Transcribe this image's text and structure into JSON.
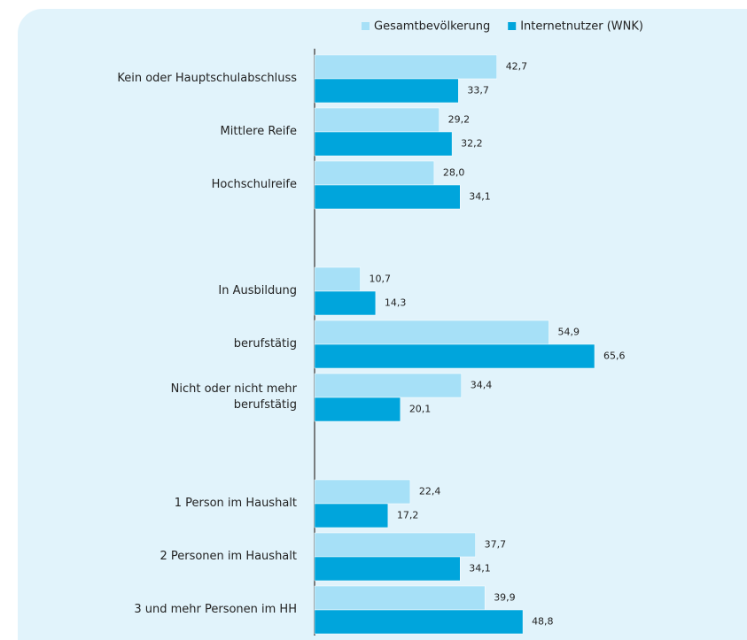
{
  "chart_data": {
    "type": "bar",
    "orientation": "horizontal",
    "categories": [
      "Kein oder Hauptschulabschluss",
      "Mittlere Reife",
      "Hochschulreife",
      null,
      "In Ausbildung",
      "berufstätig",
      "Nicht oder nicht mehr berufstätig",
      null,
      "1 Person im Haushalt",
      "2 Personen im Haushalt",
      "3 und mehr Personen im HH"
    ],
    "series": [
      {
        "name": "Gesamtbevölkerung",
        "color": "#a6e0f7",
        "values": [
          42.7,
          29.2,
          28.0,
          null,
          10.7,
          54.9,
          34.4,
          null,
          22.4,
          37.7,
          39.9
        ],
        "value_labels": [
          "42,7",
          "29,2",
          "28,0",
          null,
          "10,7",
          "54,9",
          "34,4",
          null,
          "22,4",
          "37,7",
          "39,9"
        ]
      },
      {
        "name": "Internetnutzer (WNK)",
        "color": "#00a5dc",
        "values": [
          33.7,
          32.2,
          34.1,
          null,
          14.3,
          65.6,
          20.1,
          null,
          17.2,
          34.1,
          48.8
        ],
        "value_labels": [
          "33,7",
          "32,2",
          "34,1",
          null,
          "14,3",
          "65,6",
          "20,1",
          null,
          "17,2",
          "34,1",
          "48,8"
        ]
      }
    ],
    "legend": "top-right"
  }
}
